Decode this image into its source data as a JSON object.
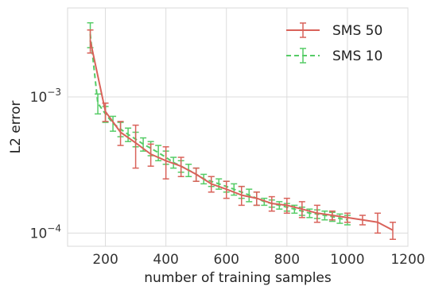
{
  "chart_data": {
    "type": "line",
    "title": "",
    "xlabel": "number of training samples",
    "ylabel": "L2 error",
    "xlim": [
      75,
      1200
    ],
    "ylim": [
      8e-05,
      0.0045
    ],
    "yscale": "log",
    "grid": true,
    "legend_position": "top-right",
    "x_ticks": [
      {
        "value": 200,
        "label": "200"
      },
      {
        "value": 400,
        "label": "400"
      },
      {
        "value": 600,
        "label": "600"
      },
      {
        "value": 800,
        "label": "800"
      },
      {
        "value": 1000,
        "label": "1000"
      },
      {
        "value": 1200,
        "label": "1200"
      }
    ],
    "y_ticks": [
      {
        "value": 0.001,
        "base": "10",
        "exponent": "−3"
      },
      {
        "value": 0.0001,
        "base": "10",
        "exponent": "−4"
      }
    ],
    "series": [
      {
        "name": "SMS 50",
        "color": "#d9625a",
        "dash": "solid",
        "x": [
          150,
          200,
          250,
          300,
          350,
          400,
          450,
          500,
          550,
          600,
          650,
          700,
          750,
          800,
          850,
          900,
          950,
          1000,
          1050,
          1100,
          1150
        ],
        "y": [
          0.0026,
          0.00078,
          0.00055,
          0.00046,
          0.00038,
          0.00034,
          0.00031,
          0.00027,
          0.00023,
          0.00021,
          0.00019,
          0.00018,
          0.000165,
          0.00016,
          0.00015,
          0.00014,
          0.000135,
          0.00013,
          0.000125,
          0.00012,
          0.000105
        ],
        "err": [
          0.0005,
          0.00012,
          0.00011,
          0.00016,
          7e-05,
          9e-05,
          5e-05,
          3e-05,
          3e-05,
          3e-05,
          3e-05,
          2e-05,
          2e-05,
          2e-05,
          2e-05,
          2e-05,
          1e-05,
          1e-05,
          1e-05,
          2e-05,
          1.5e-05
        ]
      },
      {
        "name": "SMS 10",
        "color": "#55cc66",
        "dash": "dashed",
        "x": [
          150,
          175,
          200,
          225,
          250,
          275,
          300,
          325,
          350,
          375,
          400,
          425,
          450,
          475,
          500,
          525,
          550,
          575,
          600,
          625,
          650,
          675,
          700,
          725,
          750,
          775,
          800,
          825,
          850,
          875,
          900,
          925,
          950,
          975,
          1000
        ],
        "y": [
          0.0029,
          0.0009,
          0.00075,
          0.00064,
          0.00058,
          0.00053,
          0.00049,
          0.00045,
          0.00042,
          0.00039,
          0.00036,
          0.00033,
          0.00031,
          0.00029,
          0.00027,
          0.00025,
          0.00024,
          0.00023,
          0.00022,
          0.00021,
          0.0002,
          0.00019,
          0.00018,
          0.00017,
          0.000165,
          0.00016,
          0.000155,
          0.00015,
          0.000145,
          0.00014,
          0.000138,
          0.000135,
          0.000132,
          0.000128,
          0.000125
        ],
        "err": [
          0.0006,
          0.00015,
          0.0001,
          8e-05,
          7e-05,
          6e-05,
          6e-05,
          5e-05,
          5e-05,
          5e-05,
          4e-05,
          3e-05,
          3e-05,
          3e-05,
          3e-05,
          2e-05,
          2e-05,
          2e-05,
          2e-05,
          2e-05,
          2e-05,
          2e-05,
          2e-05,
          1e-05,
          1e-05,
          1e-05,
          1e-05,
          1e-05,
          1e-05,
          1e-05,
          1e-05,
          1e-05,
          1e-05,
          1e-05,
          1e-05
        ]
      }
    ]
  }
}
